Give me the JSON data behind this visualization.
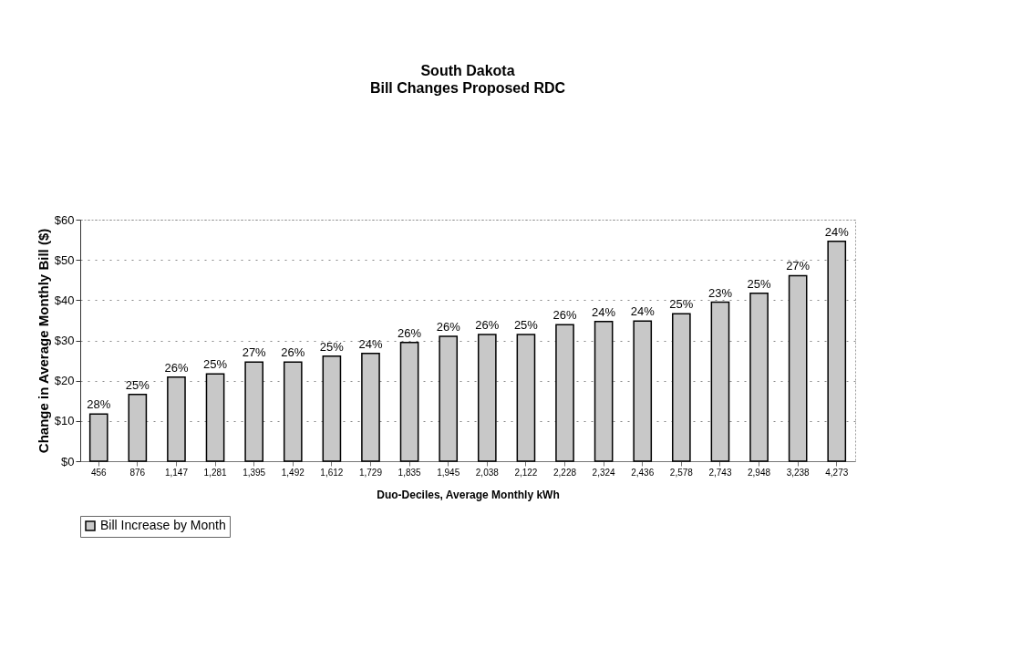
{
  "chart_data": {
    "type": "bar",
    "title": "South Dakota",
    "subtitle": "Bill Changes Proposed RDC",
    "xlabel": "Duo-Deciles, Average Monthly kWh",
    "ylabel": "Change in Average Monthly Bill  ($)",
    "categories": [
      "456",
      "876",
      "1,147",
      "1,281",
      "1,395",
      "1,492",
      "1,612",
      "1,729",
      "1,835",
      "1,945",
      "2,038",
      "2,122",
      "2,228",
      "2,324",
      "2,436",
      "2,578",
      "2,743",
      "2,948",
      "3,238",
      "4,273"
    ],
    "series": [
      {
        "name": "Bill Increase by Month",
        "color": "#c8c8c8",
        "values": [
          11.7,
          16.6,
          20.9,
          21.7,
          24.6,
          24.6,
          26.1,
          26.8,
          29.5,
          31.0,
          31.5,
          31.5,
          33.9,
          34.7,
          34.8,
          36.6,
          39.5,
          41.7,
          46.1,
          54.6
        ]
      }
    ],
    "annotations": [
      {
        "text": "28%",
        "x": "456",
        "y": 11.7
      },
      {
        "text": "25%",
        "x": "876",
        "y": 16.6
      },
      {
        "text": "26%",
        "x": "1,147",
        "y": 20.9
      },
      {
        "text": "25%",
        "x": "1,281",
        "y": 21.7
      },
      {
        "text": "27%",
        "x": "1,395",
        "y": 24.6
      },
      {
        "text": "26%",
        "x": "1,492",
        "y": 24.6
      },
      {
        "text": "25%",
        "x": "1,612",
        "y": 26.1
      },
      {
        "text": "24%",
        "x": "1,729",
        "y": 26.8
      },
      {
        "text": "26%",
        "x": "1,835",
        "y": 29.5
      },
      {
        "text": "26%",
        "x": "1,945",
        "y": 31.0
      },
      {
        "text": "26%",
        "x": "2,038",
        "y": 31.5
      },
      {
        "text": "25%",
        "x": "2,122",
        "y": 31.5
      },
      {
        "text": "26%",
        "x": "2,228",
        "y": 33.9
      },
      {
        "text": "24%",
        "x": "2,324",
        "y": 34.7
      },
      {
        "text": "24%",
        "x": "2,436",
        "y": 34.8
      },
      {
        "text": "25%",
        "x": "2,578",
        "y": 36.6
      },
      {
        "text": "23%",
        "x": "2,743",
        "y": 39.5
      },
      {
        "text": "25%",
        "x": "2,948",
        "y": 41.7
      },
      {
        "text": "27%",
        "x": "3,238",
        "y": 46.1
      },
      {
        "text": "24%",
        "x": "4,273",
        "y": 54.6
      }
    ],
    "ylim": [
      0,
      60
    ],
    "yticks": [
      {
        "value": 0,
        "label": "$0"
      },
      {
        "value": 10,
        "label": "$10"
      },
      {
        "value": 20,
        "label": "$20"
      },
      {
        "value": 30,
        "label": "$30"
      },
      {
        "value": 40,
        "label": "$40"
      },
      {
        "value": 50,
        "label": "$50"
      },
      {
        "value": 60,
        "label": "$60"
      }
    ],
    "grid": "y",
    "legend": "bottom"
  }
}
